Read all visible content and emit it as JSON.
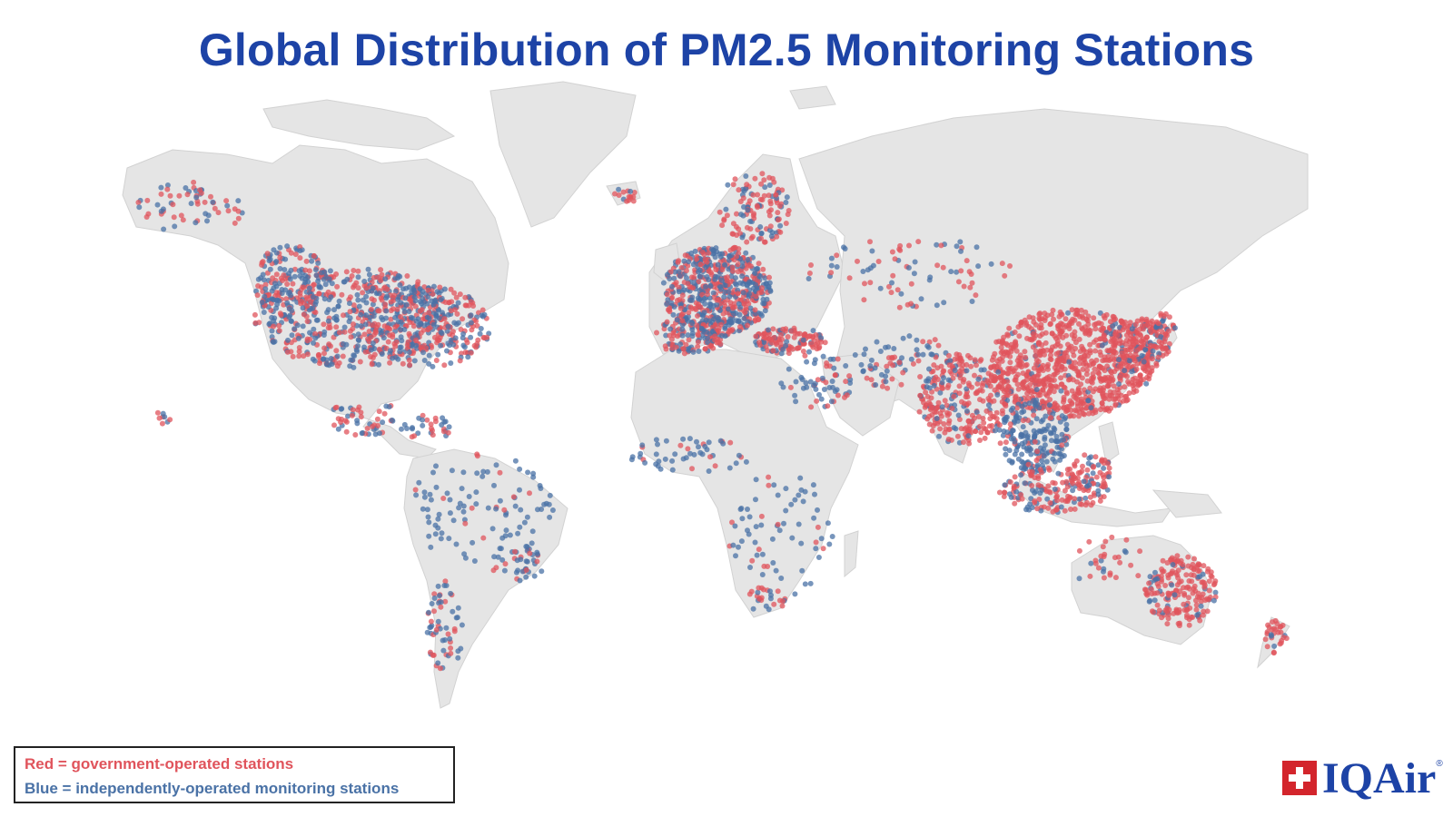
{
  "title": "Global Distribution of PM2.5 Monitoring Stations",
  "legend": {
    "red_label": "Red = government-operated stations",
    "blue_label": "Blue = independently-operated monitoring stations"
  },
  "brand": {
    "name": "IQAir",
    "mark": "®"
  },
  "colors": {
    "title": "#1d43a6",
    "land": "#e5e5e5",
    "government": "#e0545c",
    "independent": "#4a72a6"
  },
  "map": {
    "projection": "equirectangular",
    "regions": [
      {
        "name": "North America",
        "gov": "high",
        "ind": "very high"
      },
      {
        "name": "Europe",
        "gov": "very high",
        "ind": "very high"
      },
      {
        "name": "China",
        "gov": "very high",
        "ind": "low"
      },
      {
        "name": "India",
        "gov": "high",
        "ind": "medium"
      },
      {
        "name": "Southeast Asia",
        "gov": "medium",
        "ind": "high"
      },
      {
        "name": "Japan",
        "gov": "high",
        "ind": "medium"
      },
      {
        "name": "South America",
        "gov": "low",
        "ind": "medium"
      },
      {
        "name": "Africa",
        "gov": "low",
        "ind": "low"
      },
      {
        "name": "Australia",
        "gov": "high",
        "ind": "low"
      },
      {
        "name": "Middle East",
        "gov": "medium",
        "ind": "medium"
      }
    ]
  }
}
